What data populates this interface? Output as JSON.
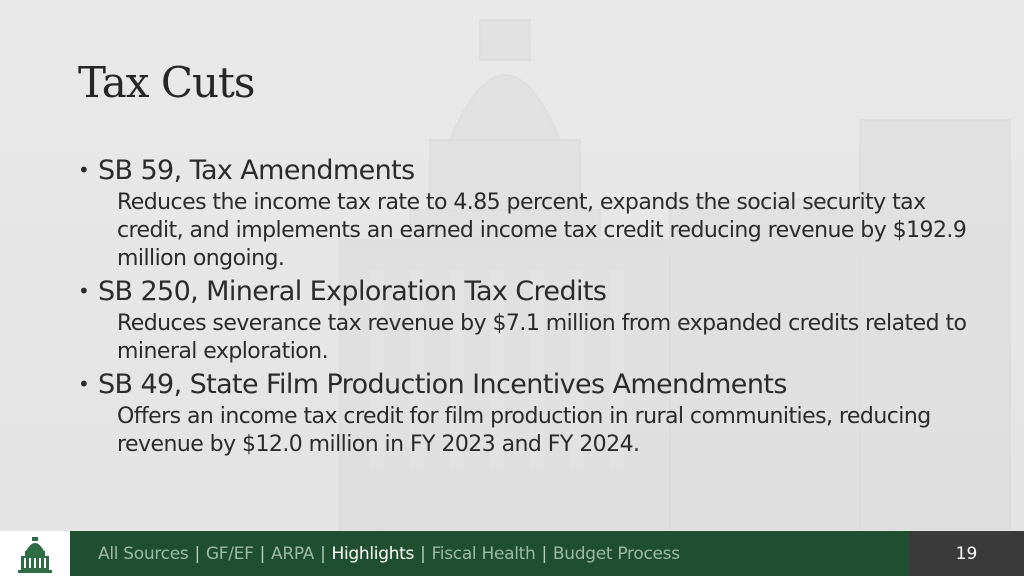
{
  "slide": {
    "title": "Tax Cuts",
    "bullets": [
      {
        "heading": "SB 59, Tax Amendments",
        "description": "Reduces the income tax rate to 4.85 percent, expands the social security tax credit, and implements an earned income tax credit reducing revenue by $192.9 million ongoing."
      },
      {
        "heading": "SB 250, Mineral Exploration Tax Credits",
        "description": "Reduces severance tax revenue by $7.1 million from expanded credits related to mineral exploration."
      },
      {
        "heading": "SB 49, State Film Production Incentives Amendments",
        "description": "Offers an income tax credit for film production in rural communities, reducing revenue by $12.0 million in FY 2023 and FY 2024."
      }
    ]
  },
  "footer": {
    "logo_icon": "capitol-dome-icon",
    "nav": [
      {
        "label": "All Sources",
        "active": false
      },
      {
        "label": "GF/EF",
        "active": false
      },
      {
        "label": "ARPA",
        "active": false
      },
      {
        "label": "Highlights",
        "active": true
      },
      {
        "label": "Fiscal Health",
        "active": false
      },
      {
        "label": "Budget Process",
        "active": false
      }
    ],
    "separator": "|",
    "page_number": "19"
  },
  "colors": {
    "footer_green": "#1f4e31",
    "footer_gray": "#3a3a3a",
    "text": "#2b2b2b"
  }
}
